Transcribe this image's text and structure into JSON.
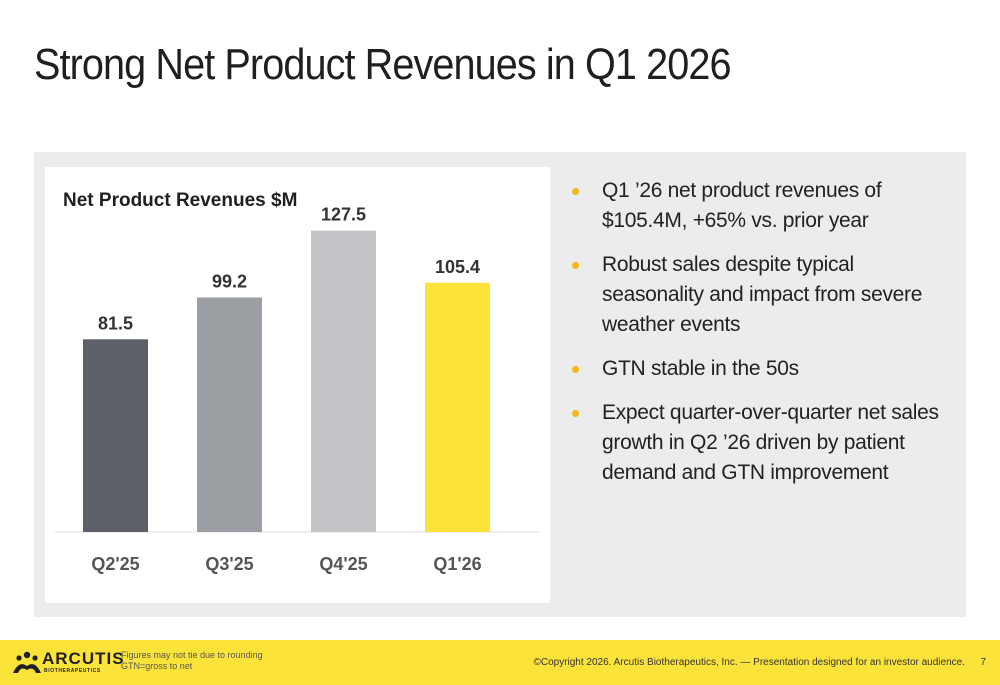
{
  "slide": {
    "title": "Strong Net Product Revenues in Q1 2026"
  },
  "chart_data": {
    "type": "bar",
    "title": "Net Product Revenues $M",
    "categories": [
      "Q2'25",
      "Q3'25",
      "Q4'25",
      "Q1'26"
    ],
    "values": [
      81.5,
      99.2,
      127.5,
      105.4
    ],
    "value_labels": [
      "81.5",
      "99.2",
      "127.5",
      "105.4"
    ],
    "bar_colors": [
      "#5d6066",
      "#9b9ea3",
      "#c4c5c8",
      "#fce33a"
    ],
    "ylim": [
      0,
      140
    ],
    "grid": false,
    "legend": "none"
  },
  "bullets": {
    "color": "#f3b71b",
    "items": [
      "Q1 ’26 net product revenues of $105.4M, +65% vs. prior year",
      "Robust sales despite typical seasonality and impact from severe weather events",
      "GTN stable in the 50s",
      "Expect quarter-over-quarter net sales growth in Q2 ’26 driven by patient demand and GTN improvement"
    ]
  },
  "footer": {
    "background": "#fce33a",
    "logo_text": "ARCUTIS",
    "logo_subtext": "BIOTHERAPEUTICS",
    "footnote_1": "Figures may not tie due to rounding",
    "footnote_2": "GTN=gross to net",
    "copyright": "©Copyright 2026. Arcutis Biotherapeutics, Inc. —  Presentation designed for an investor audience.",
    "page_number": "7"
  }
}
